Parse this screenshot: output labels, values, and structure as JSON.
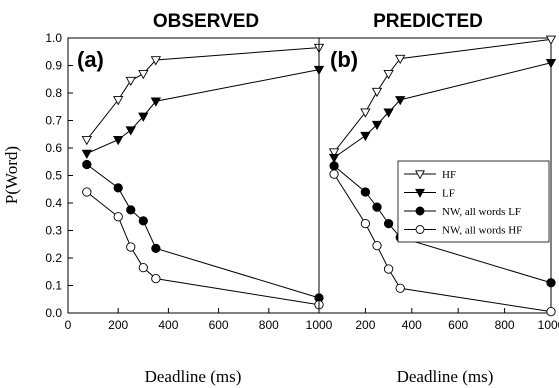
{
  "chart_data": [
    {
      "type": "line",
      "panel_label": "(a)",
      "title": "OBSERVED",
      "xlabel": "Deadline (ms)",
      "ylabel": "P(Word)",
      "xlim": [
        0,
        1000
      ],
      "ylim": [
        0.0,
        1.0
      ],
      "xticks": [
        "0",
        "200",
        "400",
        "600",
        "800",
        "1000"
      ],
      "yticks": [
        "0.0",
        "0.1",
        "0.2",
        "0.3",
        "0.4",
        "0.5",
        "0.6",
        "0.7",
        "0.8",
        "0.9",
        "1.0"
      ],
      "grid": false,
      "series": [
        {
          "name": "HF",
          "marker": "triangle-down-open",
          "x": [
            75,
            200,
            250,
            300,
            350,
            1000
          ],
          "y": [
            0.63,
            0.775,
            0.845,
            0.87,
            0.92,
            0.965
          ]
        },
        {
          "name": "LF",
          "marker": "triangle-down-filled",
          "x": [
            75,
            200,
            250,
            300,
            350,
            1000
          ],
          "y": [
            0.58,
            0.63,
            0.665,
            0.715,
            0.77,
            0.885
          ]
        },
        {
          "name": "NW, all words LF",
          "marker": "circle-filled",
          "x": [
            75,
            200,
            250,
            300,
            350,
            1000
          ],
          "y": [
            0.54,
            0.455,
            0.375,
            0.335,
            0.235,
            0.055
          ]
        },
        {
          "name": "NW, all words HF",
          "marker": "circle-open",
          "x": [
            75,
            200,
            250,
            300,
            350,
            1000
          ],
          "y": [
            0.44,
            0.35,
            0.24,
            0.165,
            0.125,
            0.03
          ]
        }
      ]
    },
    {
      "type": "line",
      "panel_label": "(b)",
      "title": "PREDICTED",
      "xlabel": "Deadline (ms)",
      "ylabel": "",
      "xlim": [
        0,
        1000
      ],
      "ylim": [
        0.0,
        1.0
      ],
      "xticks": [
        "200",
        "400",
        "600",
        "800",
        "1000"
      ],
      "yticks": [],
      "grid": false,
      "legend_position": "center-right",
      "series": [
        {
          "name": "HF",
          "marker": "triangle-down-open",
          "x": [
            65,
            200,
            250,
            300,
            350,
            1000
          ],
          "y": [
            0.585,
            0.73,
            0.805,
            0.87,
            0.925,
            0.995
          ]
        },
        {
          "name": "LF",
          "marker": "triangle-down-filled",
          "x": [
            65,
            200,
            250,
            300,
            350,
            1000
          ],
          "y": [
            0.565,
            0.645,
            0.685,
            0.73,
            0.775,
            0.91
          ]
        },
        {
          "name": "NW, all words LF",
          "marker": "circle-filled",
          "x": [
            65,
            200,
            250,
            300,
            350,
            1000
          ],
          "y": [
            0.535,
            0.44,
            0.385,
            0.325,
            0.275,
            0.11
          ]
        },
        {
          "name": "NW, all words HF",
          "marker": "circle-open",
          "x": [
            65,
            200,
            250,
            300,
            350,
            1000
          ],
          "y": [
            0.505,
            0.325,
            0.245,
            0.16,
            0.09,
            0.005
          ]
        }
      ]
    }
  ],
  "legend": {
    "entries": [
      {
        "label": "HF",
        "marker": "triangle-down-open"
      },
      {
        "label": "LF",
        "marker": "triangle-down-filled"
      },
      {
        "label": "NW, all words LF",
        "marker": "circle-filled"
      },
      {
        "label": "NW, all words HF",
        "marker": "circle-open"
      }
    ]
  },
  "colors": {
    "ink": "#000000",
    "background": "#ffffff"
  }
}
